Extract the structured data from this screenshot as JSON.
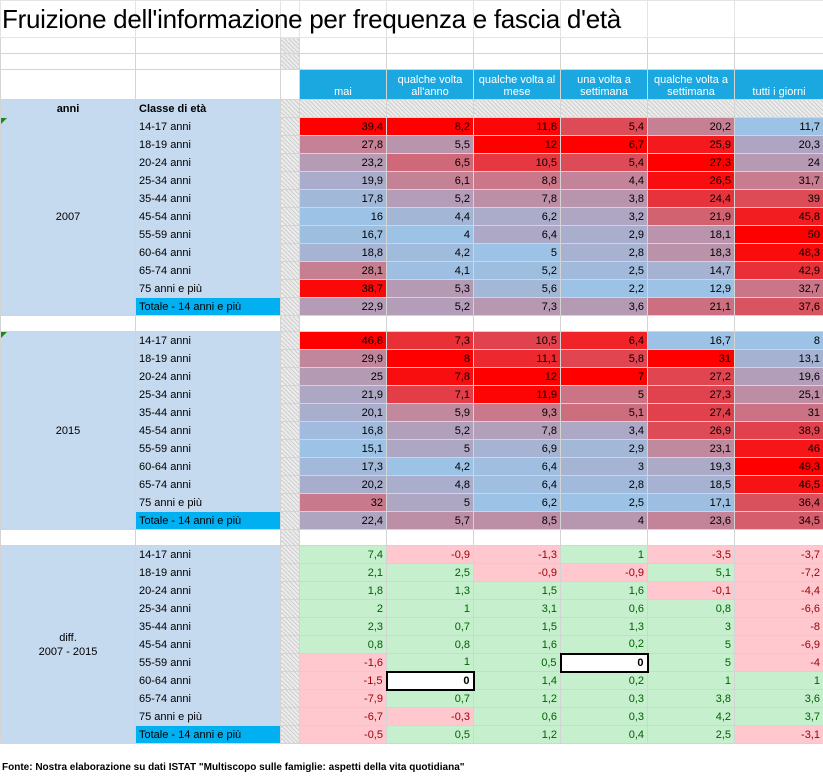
{
  "title": "Fruizione dell'informazione per frequenza e fascia d'età",
  "header": {
    "anni": "anni",
    "classe": "Classe di età",
    "columns": [
      "mai",
      "qualche volta all'anno",
      "qualche volta al mese",
      "una volta a settimana",
      "qualche volta a settimana",
      "tutti i giorni"
    ]
  },
  "blocks": [
    {
      "label": "2007",
      "kind": "data",
      "rows": [
        {
          "age": "14-17 anni",
          "values": [
            "39,4",
            "8,2",
            "11,8",
            "5,4",
            "20,2",
            "11,7"
          ]
        },
        {
          "age": "18-19 anni",
          "values": [
            "27,8",
            "5,5",
            "12",
            "6,7",
            "25,9",
            "20,3"
          ]
        },
        {
          "age": "20-24 anni",
          "values": [
            "23,2",
            "6,5",
            "10,5",
            "5,4",
            "27,3",
            "24"
          ]
        },
        {
          "age": "25-34 anni",
          "values": [
            "19,9",
            "6,1",
            "8,8",
            "4,4",
            "26,5",
            "31,7"
          ]
        },
        {
          "age": "35-44 anni",
          "values": [
            "17,8",
            "5,2",
            "7,8",
            "3,8",
            "24,4",
            "39"
          ]
        },
        {
          "age": "45-54 anni",
          "values": [
            "16",
            "4,4",
            "6,2",
            "3,2",
            "21,9",
            "45,8"
          ]
        },
        {
          "age": "55-59 anni",
          "values": [
            "16,7",
            "4",
            "6,4",
            "2,9",
            "18,1",
            "50"
          ]
        },
        {
          "age": "60-64 anni",
          "values": [
            "18,8",
            "4,2",
            "5",
            "2,8",
            "18,3",
            "48,3"
          ]
        },
        {
          "age": "65-74 anni",
          "values": [
            "28,1",
            "4,1",
            "5,2",
            "2,5",
            "14,7",
            "42,9"
          ]
        },
        {
          "age": "75 anni e più",
          "values": [
            "38,7",
            "5,3",
            "5,6",
            "2,2",
            "12,9",
            "32,7"
          ]
        },
        {
          "age": "Totale - 14 anni e più",
          "total": true,
          "values": [
            "22,9",
            "5,2",
            "7,3",
            "3,6",
            "21,1",
            "37,6"
          ]
        }
      ]
    },
    {
      "label": "2015",
      "kind": "data",
      "rows": [
        {
          "age": "14-17 anni",
          "values": [
            "46,8",
            "7,3",
            "10,5",
            "6,4",
            "16,7",
            "8"
          ]
        },
        {
          "age": "18-19 anni",
          "values": [
            "29,9",
            "8",
            "11,1",
            "5,8",
            "31",
            "13,1"
          ]
        },
        {
          "age": "20-24 anni",
          "values": [
            "25",
            "7,8",
            "12",
            "7",
            "27,2",
            "19,6"
          ]
        },
        {
          "age": "25-34 anni",
          "values": [
            "21,9",
            "7,1",
            "11,9",
            "5",
            "27,3",
            "25,1"
          ]
        },
        {
          "age": "35-44 anni",
          "values": [
            "20,1",
            "5,9",
            "9,3",
            "5,1",
            "27,4",
            "31"
          ]
        },
        {
          "age": "45-54 anni",
          "values": [
            "16,8",
            "5,2",
            "7,8",
            "3,4",
            "26,9",
            "38,9"
          ]
        },
        {
          "age": "55-59 anni",
          "values": [
            "15,1",
            "5",
            "6,9",
            "2,9",
            "23,1",
            "46"
          ]
        },
        {
          "age": "60-64 anni",
          "values": [
            "17,3",
            "4,2",
            "6,4",
            "3",
            "19,3",
            "49,3"
          ]
        },
        {
          "age": "65-74 anni",
          "values": [
            "20,2",
            "4,8",
            "6,4",
            "2,8",
            "18,5",
            "46,5"
          ]
        },
        {
          "age": "75 anni e più",
          "values": [
            "32",
            "5",
            "6,2",
            "2,5",
            "17,1",
            "36,4"
          ]
        },
        {
          "age": "Totale - 14 anni e più",
          "total": true,
          "values": [
            "22,4",
            "5,7",
            "8,5",
            "4",
            "23,6",
            "34,5"
          ]
        }
      ]
    },
    {
      "label": "diff.\n2007 - 2015",
      "kind": "diff",
      "rows": [
        {
          "age": "14-17 anni",
          "values": [
            "7,4",
            "-0,9",
            "-1,3",
            "1",
            "-3,5",
            "-3,7"
          ]
        },
        {
          "age": "18-19 anni",
          "values": [
            "2,1",
            "2,5",
            "-0,9",
            "-0,9",
            "5,1",
            "-7,2"
          ]
        },
        {
          "age": "20-24 anni",
          "values": [
            "1,8",
            "1,3",
            "1,5",
            "1,6",
            "-0,1",
            "-4,4"
          ]
        },
        {
          "age": "25-34 anni",
          "values": [
            "2",
            "1",
            "3,1",
            "0,6",
            "0,8",
            "-6,6"
          ]
        },
        {
          "age": "35-44 anni",
          "values": [
            "2,3",
            "0,7",
            "1,5",
            "1,3",
            "3",
            "-8"
          ]
        },
        {
          "age": "45-54 anni",
          "values": [
            "0,8",
            "0,8",
            "1,6",
            "0,2",
            "5",
            "-6,9"
          ]
        },
        {
          "age": "55-59 anni",
          "values": [
            "-1,6",
            "1",
            "0,5",
            "0",
            "5",
            "-4"
          ]
        },
        {
          "age": "60-64 anni",
          "values": [
            "-1,5",
            "0",
            "1,4",
            "0,2",
            "1",
            "1"
          ]
        },
        {
          "age": "65-74 anni",
          "values": [
            "-7,9",
            "0,7",
            "1,2",
            "0,3",
            "3,8",
            "3,6"
          ]
        },
        {
          "age": "75 anni e più",
          "values": [
            "-6,7",
            "-0,3",
            "0,6",
            "0,3",
            "4,2",
            "3,7"
          ]
        },
        {
          "age": "Totale - 14 anni e più",
          "total": true,
          "values": [
            "-0,5",
            "0,5",
            "1,2",
            "0,4",
            "2,5",
            "-3,1"
          ]
        }
      ]
    }
  ],
  "footnote": "Fonte:  Nostra elaborazione su dati ISTAT \"Multiscopo sulle famiglie: aspetti della vita quotidiana\"",
  "colors": {
    "header_blue": "#1ba8e0",
    "label_blue": "#c5d9ef",
    "total_blue": "#00b0f0",
    "scale_low": "#9cc2e5",
    "scale_high": "#ff0000",
    "diff_positive": "#c6efce",
    "diff_negative": "#ffc7ce"
  }
}
